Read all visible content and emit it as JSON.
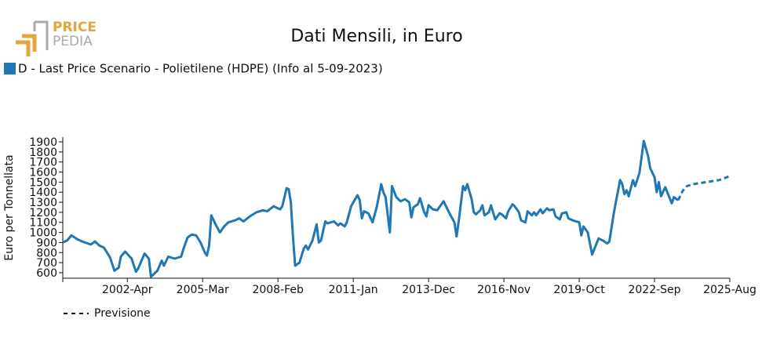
{
  "logo": {
    "line1": "PRICE",
    "line2": "PEDIA"
  },
  "chart_data": {
    "type": "line",
    "title": "Dati Mensili, in Euro",
    "y_label": "Euro per Tonnellata",
    "xlim": [
      "1999-Oct",
      "2025-Aug"
    ],
    "xticks": [
      "2002-Apr",
      "2005-Mar",
      "2008-Feb",
      "2011-Jan",
      "2013-Dec",
      "2016-Nov",
      "2019-Oct",
      "2022-Sep",
      "2025-Aug"
    ],
    "ylim": [
      545,
      1947
    ],
    "yticks": [
      600,
      700,
      800,
      900,
      1000,
      1100,
      1200,
      1300,
      1400,
      1500,
      1600,
      1700,
      1800,
      1900
    ],
    "series": [
      {
        "name": "D - Last Price Scenario - Polietilene (HDPE) (Info al 5-09-2023)",
        "color": "#1f77b4",
        "style": "solid",
        "x": [
          "1999-Oct",
          "1999-Dec",
          "2000-Feb",
          "2000-May",
          "2000-Jul",
          "2000-Nov",
          "2001-Jan",
          "2001-Mar",
          "2001-May",
          "2001-Jun",
          "2001-Aug",
          "2001-Oct",
          "2001-Dec",
          "2002-Jan",
          "2002-Mar",
          "2002-Jun",
          "2002-Aug",
          "2002-Sep",
          "2002-Dec",
          "2003-Feb",
          "2003-Mar",
          "2003-Jun",
          "2003-Aug",
          "2003-Sep",
          "2003-Nov",
          "2004-Feb",
          "2004-May",
          "2004-Jun",
          "2004-Aug",
          "2004-Oct",
          "2004-Dec",
          "2005-Feb",
          "2005-Apr",
          "2005-May",
          "2005-Jun",
          "2005-Jul",
          "2005-Sep",
          "2005-Nov",
          "2006-Jan",
          "2006-Mar",
          "2006-Jun",
          "2006-Aug",
          "2006-Oct",
          "2007-Jan",
          "2007-Apr",
          "2007-Jul",
          "2007-Sep",
          "2007-Dec",
          "2008-Mar",
          "2008-Apr",
          "2008-Jun",
          "2008-Jul",
          "2008-Aug",
          "2008-Sep",
          "2008-Oct",
          "2008-Dec",
          "2009-Feb",
          "2009-Mar",
          "2009-Apr",
          "2009-Jun",
          "2009-Aug",
          "2009-Sep",
          "2009-Oct",
          "2009-Dec",
          "2010-Jan",
          "2010-Apr",
          "2010-Jun",
          "2010-Jul",
          "2010-Sep",
          "2010-Oct",
          "2010-Dec",
          "2011-Jan",
          "2011-Mar",
          "2011-Apr",
          "2011-May",
          "2011-Jun",
          "2011-Aug",
          "2011-Oct",
          "2011-Dec",
          "2012-Feb",
          "2012-Mar",
          "2012-Apr",
          "2012-Jun",
          "2012-Jul",
          "2012-Sep",
          "2012-Nov",
          "2013-Jan",
          "2013-Mar",
          "2013-Apr",
          "2013-May",
          "2013-Jul",
          "2013-Aug",
          "2013-Oct",
          "2013-Nov",
          "2013-Dec",
          "2014-Feb",
          "2014-Apr",
          "2014-May",
          "2014-Jul",
          "2014-Sep",
          "2014-Oct",
          "2014-Dec",
          "2015-Jan",
          "2015-Feb",
          "2015-Apr",
          "2015-May",
          "2015-Jun",
          "2015-Aug",
          "2015-Sep",
          "2015-Oct",
          "2015-Dec",
          "2016-Jan",
          "2016-Feb",
          "2016-Apr",
          "2016-May",
          "2016-Jul",
          "2016-Sep",
          "2016-Oct",
          "2016-Dec",
          "2017-Jan",
          "2017-Mar",
          "2017-Apr",
          "2017-Jun",
          "2017-Jul",
          "2017-Sep",
          "2017-Oct",
          "2017-Dec",
          "2018-Jan",
          "2018-Feb",
          "2018-Apr",
          "2018-May",
          "2018-Jul",
          "2018-Aug",
          "2018-Oct",
          "2018-Nov",
          "2019-Jan",
          "2019-Feb",
          "2019-Apr",
          "2019-May",
          "2019-Jul",
          "2019-Oct",
          "2019-Nov",
          "2019-Dec",
          "2020-Feb",
          "2020-Apr",
          "2020-Jul",
          "2020-Sep",
          "2020-Nov",
          "2020-Dec",
          "2021-Feb",
          "2021-Mar",
          "2021-May",
          "2021-Jun",
          "2021-Jul",
          "2021-Aug",
          "2021-Sep",
          "2021-Nov",
          "2021-Dec",
          "2022-Feb",
          "2022-Apr",
          "2022-Jun",
          "2022-Jul",
          "2022-Sep",
          "2022-Oct",
          "2022-Nov",
          "2022-Dec",
          "2023-Feb",
          "2023-May",
          "2023-Jun",
          "2023-Aug"
        ],
        "values": [
          900,
          920,
          970,
          930,
          910,
          880,
          910,
          870,
          850,
          820,
          750,
          620,
          650,
          760,
          810,
          740,
          610,
          640,
          790,
          740,
          560,
          620,
          720,
          670,
          760,
          740,
          760,
          830,
          950,
          980,
          970,
          900,
          800,
          770,
          870,
          1170,
          1080,
          1000,
          1060,
          1100,
          1120,
          1140,
          1110,
          1160,
          1200,
          1220,
          1210,
          1260,
          1230,
          1260,
          1440,
          1430,
          1300,
          950,
          670,
          700,
          840,
          870,
          830,
          920,
          1080,
          900,
          920,
          1110,
          1090,
          1110,
          1070,
          1090,
          1060,
          1100,
          1260,
          1300,
          1370,
          1320,
          1140,
          1210,
          1190,
          1100,
          1260,
          1480,
          1400,
          1350,
          1000,
          1460,
          1350,
          1310,
          1330,
          1300,
          1150,
          1250,
          1280,
          1340,
          1200,
          1160,
          1270,
          1230,
          1220,
          1250,
          1310,
          1220,
          1180,
          1100,
          960,
          1110,
          1460,
          1420,
          1480,
          1330,
          1200,
          1180,
          1220,
          1270,
          1170,
          1200,
          1270,
          1130,
          1190,
          1180,
          1140,
          1210,
          1280,
          1260,
          1200,
          1120,
          1100,
          1210,
          1170,
          1200,
          1170,
          1230,
          1190,
          1240,
          1220,
          1230,
          1160,
          1130,
          1190,
          1200,
          1140,
          1120,
          1100,
          970,
          1060,
          1000,
          780,
          940,
          920,
          890,
          910,
          1180,
          1300,
          1520,
          1480,
          1380,
          1420,
          1360,
          1520,
          1460,
          1590,
          1910,
          1760,
          1640,
          1550,
          1400,
          1500,
          1360,
          1450,
          1290,
          1350,
          1320
        ]
      },
      {
        "name": "Previsione",
        "color": "#1f77b4",
        "style": "dashed",
        "x": [
          "2023-Aug",
          "2023-Oct",
          "2023-Dec",
          "2024-Mar",
          "2024-Sep",
          "2025-Mar",
          "2025-Aug"
        ],
        "values": [
          1320,
          1410,
          1460,
          1480,
          1500,
          1520,
          1560
        ]
      }
    ]
  }
}
